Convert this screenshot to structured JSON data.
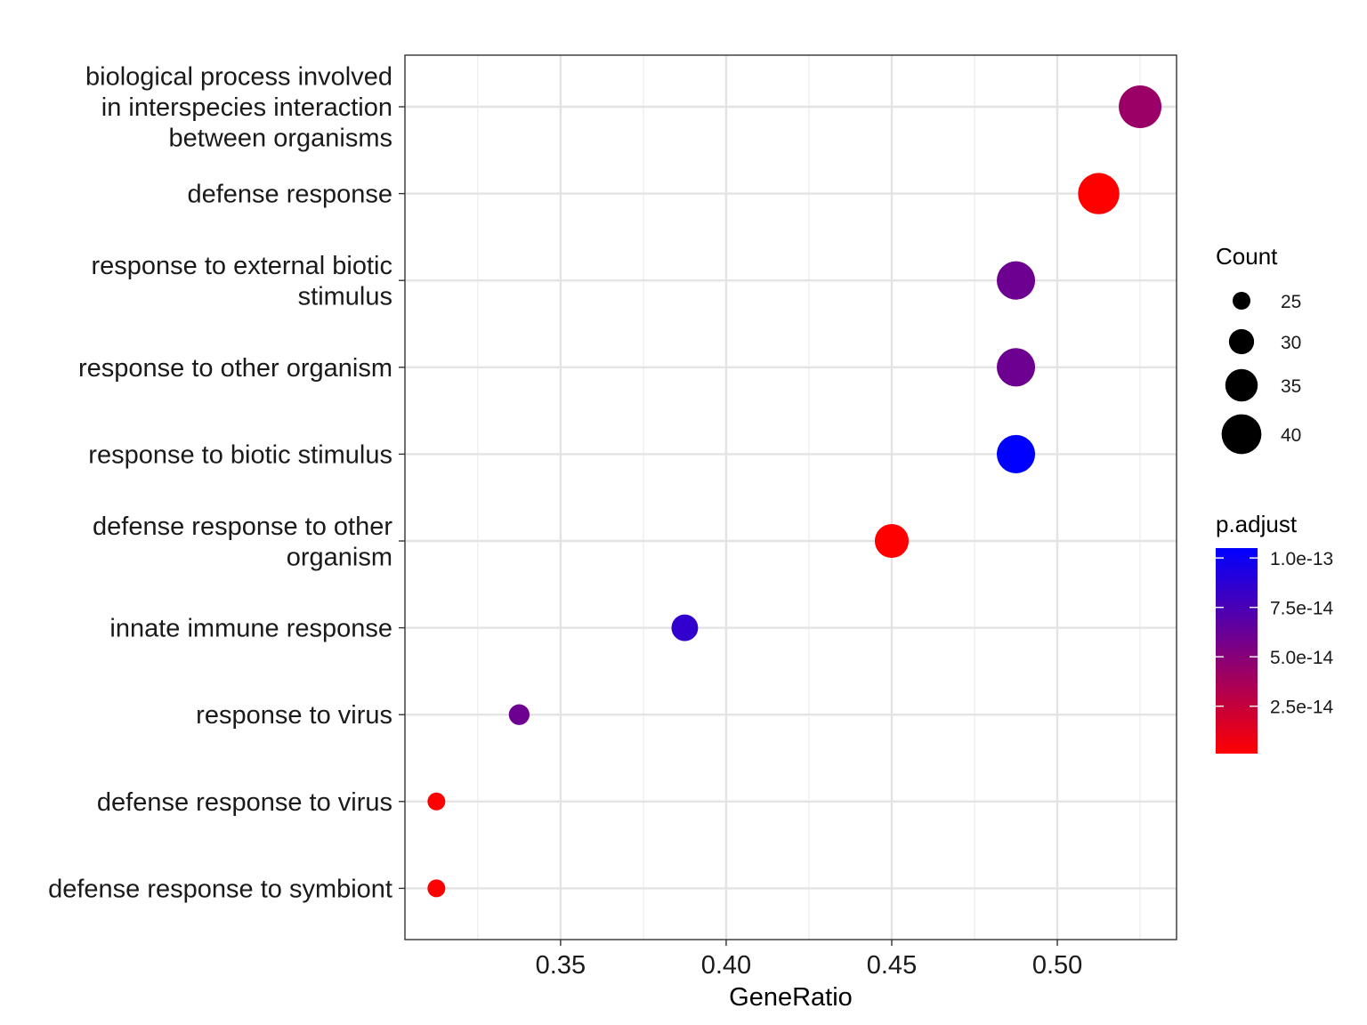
{
  "chart_data": {
    "type": "scatter",
    "xlabel": "GeneRatio",
    "ylabel": "",
    "xlim": [
      0.303,
      0.536
    ],
    "xticks": [
      0.35,
      0.4,
      0.45,
      0.5
    ],
    "xtick_labels": [
      "0.35",
      "0.40",
      "0.45",
      "0.50"
    ],
    "grid": true,
    "categories": [
      {
        "label": "biological process involved in interspecies interaction between organisms",
        "lines": [
          "biological process involved",
          "in interspecies interaction",
          "between organisms"
        ],
        "x": 0.525,
        "count": 42,
        "p_adjust": 4.2e-14
      },
      {
        "label": "defense response",
        "lines": [
          "defense response"
        ],
        "x": 0.5125,
        "count": 41,
        "p_adjust": 1e-15
      },
      {
        "label": "response to external biotic stimulus",
        "lines": [
          "response to external biotic",
          "stimulus"
        ],
        "x": 0.4875,
        "count": 39,
        "p_adjust": 6e-14
      },
      {
        "label": "response to other organism",
        "lines": [
          "response to other organism"
        ],
        "x": 0.4875,
        "count": 39,
        "p_adjust": 6e-14
      },
      {
        "label": "response to biotic stimulus",
        "lines": [
          "response to biotic stimulus"
        ],
        "x": 0.4875,
        "count": 39,
        "p_adjust": 1.05e-13
      },
      {
        "label": "defense response to other organism",
        "lines": [
          "defense response to other",
          "organism"
        ],
        "x": 0.45,
        "count": 36,
        "p_adjust": 1e-15
      },
      {
        "label": "innate immune response",
        "lines": [
          "innate immune response"
        ],
        "x": 0.3875,
        "count": 31,
        "p_adjust": 8.5e-14
      },
      {
        "label": "response to virus",
        "lines": [
          "response to virus"
        ],
        "x": 0.3375,
        "count": 27,
        "p_adjust": 6e-14
      },
      {
        "label": "defense response to virus",
        "lines": [
          "defense response to virus"
        ],
        "x": 0.3125,
        "count": 25,
        "p_adjust": 1e-15
      },
      {
        "label": "defense response to symbiont",
        "lines": [
          "defense response to symbiont"
        ],
        "x": 0.3125,
        "count": 25,
        "p_adjust": 1e-15
      }
    ],
    "legend_size": {
      "title": "Count",
      "values": [
        25,
        30,
        35,
        40
      ],
      "labels": [
        "25",
        "30",
        "35",
        "40"
      ],
      "placement": "right"
    },
    "legend_color": {
      "title": "p.adjust",
      "range": [
        1e-15,
        1.05e-13
      ],
      "low_color": "#ff0000",
      "high_color": "#0000ff",
      "ticks": [
        2.5e-14,
        5e-14,
        7.5e-14,
        1e-13
      ],
      "tick_labels": [
        "2.5e-14",
        "5.0e-14",
        "7.5e-14",
        "1.0e-13"
      ],
      "placement": "right"
    },
    "count_range": [
      25,
      42
    ]
  }
}
